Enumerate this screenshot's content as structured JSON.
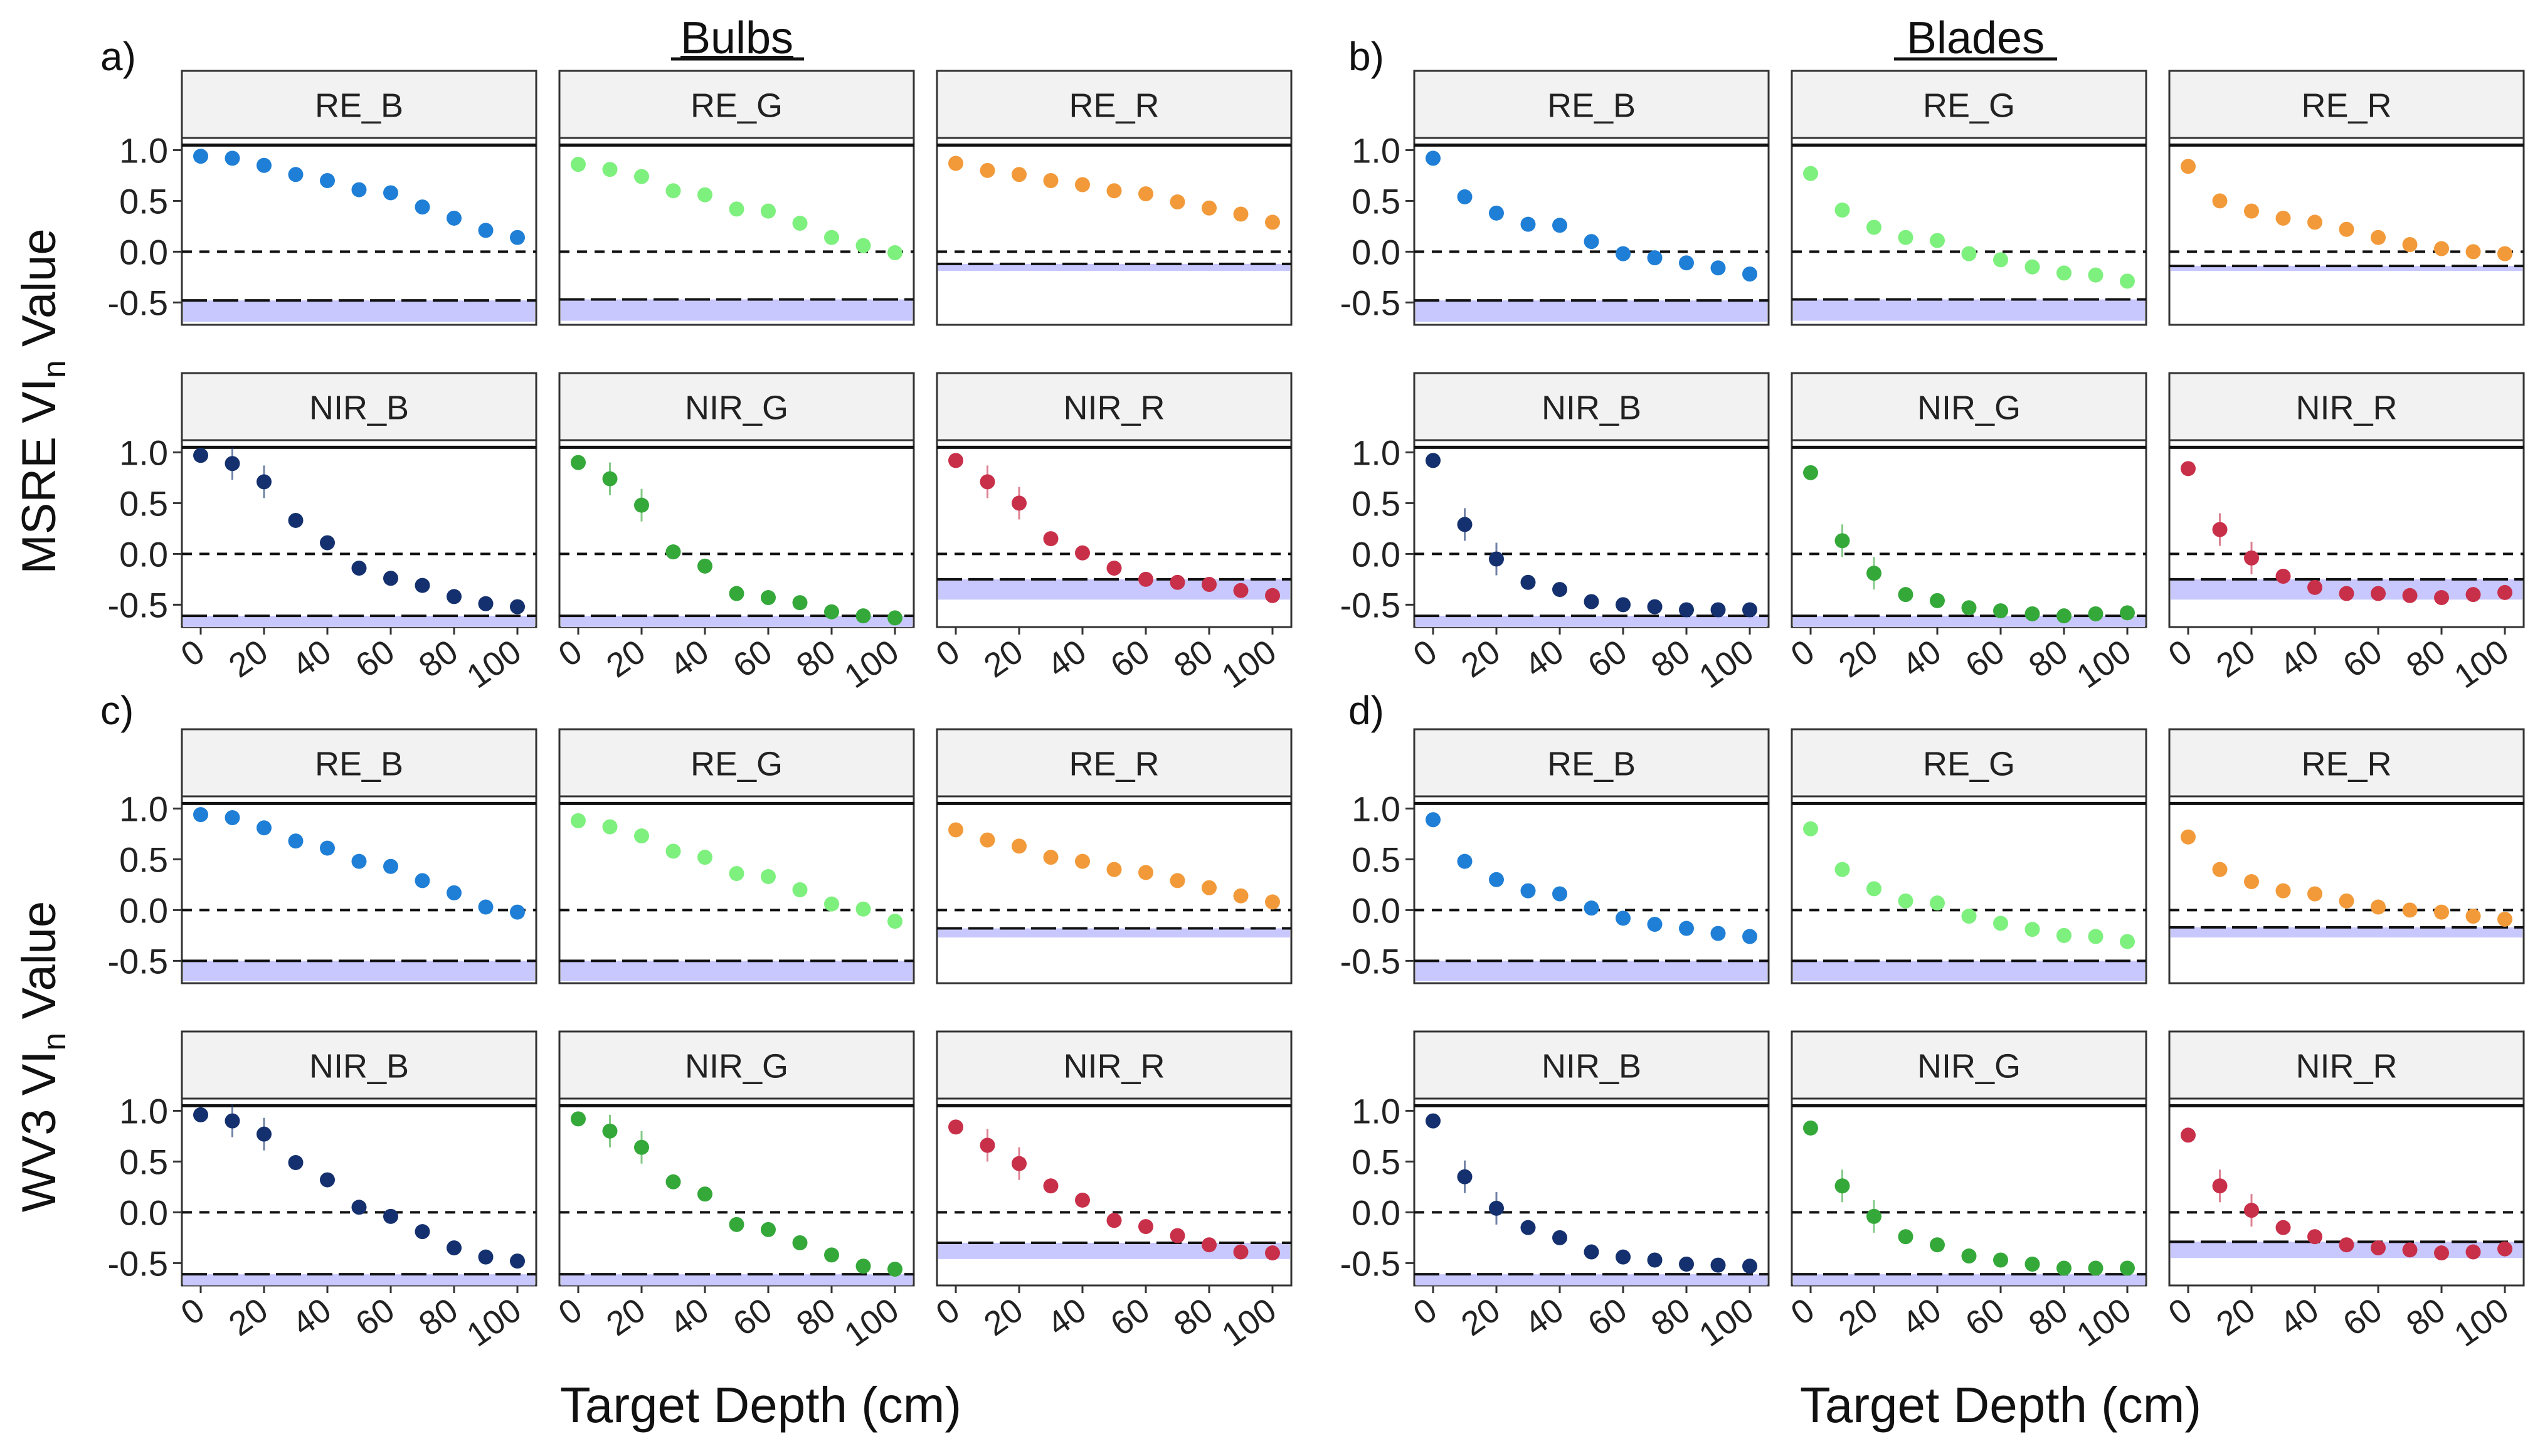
{
  "titles": {
    "bulbs": "Bulbs",
    "blades": "Blades",
    "xlabel": "Target Depth (cm)",
    "ylabel_msre_prefix": "MSRE VI",
    "ylabel_wv3_prefix": "WV3 VI",
    "ylabel_sub": "n",
    "ylabel_suffix": " Value"
  },
  "panel_letters": [
    "a)",
    "b)",
    "c)",
    "d)"
  ],
  "strip_labels": [
    "RE_B",
    "RE_G",
    "RE_R",
    "NIR_B",
    "NIR_G",
    "NIR_R"
  ],
  "colors": {
    "RE_B": "#1f7fd6",
    "RE_G": "#7ef07e",
    "RE_R": "#f29a3a",
    "NIR_B": "#14306e",
    "NIR_G": "#35a83a",
    "NIR_R": "#c8304a",
    "band": "#c8c8ff",
    "strip": "#f2f2f2"
  },
  "chart_data": {
    "type": "scatter",
    "x": [
      0,
      10,
      20,
      30,
      40,
      50,
      60,
      70,
      80,
      90,
      100
    ],
    "x_ticks": [
      "0",
      "20",
      "40",
      "60",
      "80",
      "100"
    ],
    "y_ticks": [
      "1.0",
      "0.5",
      "0.0",
      "-0.5"
    ],
    "ylim": [
      -0.72,
      1.12
    ],
    "xlabel": "Target Depth (cm)",
    "reference_lines": {
      "upper": 1.05,
      "zero": 0.0
    },
    "groups": [
      {
        "id": "a",
        "title": "Bulbs",
        "ylabel": "MSRE VIn Value",
        "panels": [
          {
            "label": "RE_B",
            "y": [
              0.94,
              0.92,
              0.85,
              0.76,
              0.7,
              0.61,
              0.58,
              0.44,
              0.33,
              0.21,
              0.14
            ],
            "threshold": -0.48,
            "band": [
              -0.69,
              -0.48
            ]
          },
          {
            "label": "RE_G",
            "y": [
              0.86,
              0.81,
              0.74,
              0.6,
              0.56,
              0.42,
              0.4,
              0.28,
              0.14,
              0.06,
              -0.01
            ],
            "threshold": -0.47,
            "band": [
              -0.68,
              -0.47
            ]
          },
          {
            "label": "RE_R",
            "y": [
              0.87,
              0.8,
              0.76,
              0.7,
              0.66,
              0.6,
              0.57,
              0.49,
              0.43,
              0.37,
              0.29
            ],
            "threshold": -0.12,
            "band": [
              -0.19,
              -0.12
            ]
          },
          {
            "label": "NIR_B",
            "y": [
              0.97,
              0.89,
              0.71,
              0.33,
              0.11,
              -0.14,
              -0.24,
              -0.31,
              -0.42,
              -0.49,
              -0.52
            ],
            "threshold": -0.61,
            "band": [
              -0.72,
              -0.61
            ]
          },
          {
            "label": "NIR_G",
            "y": [
              0.9,
              0.74,
              0.48,
              0.02,
              -0.12,
              -0.39,
              -0.43,
              -0.48,
              -0.57,
              -0.61,
              -0.63
            ],
            "threshold": -0.61,
            "band": [
              -0.72,
              -0.61
            ]
          },
          {
            "label": "NIR_R",
            "y": [
              0.92,
              0.71,
              0.5,
              0.15,
              0.01,
              -0.14,
              -0.25,
              -0.28,
              -0.3,
              -0.36,
              -0.41
            ],
            "threshold": -0.25,
            "band": [
              -0.45,
              -0.25
            ]
          }
        ]
      },
      {
        "id": "b",
        "title": "Blades",
        "ylabel": "MSRE VIn Value",
        "panels": [
          {
            "label": "RE_B",
            "y": [
              0.92,
              0.54,
              0.38,
              0.27,
              0.26,
              0.1,
              -0.02,
              -0.06,
              -0.11,
              -0.16,
              -0.22
            ],
            "threshold": -0.48,
            "band": [
              -0.69,
              -0.48
            ]
          },
          {
            "label": "RE_G",
            "y": [
              0.77,
              0.41,
              0.24,
              0.14,
              0.11,
              -0.02,
              -0.08,
              -0.15,
              -0.21,
              -0.23,
              -0.29
            ],
            "threshold": -0.47,
            "band": [
              -0.68,
              -0.47
            ]
          },
          {
            "label": "RE_R",
            "y": [
              0.84,
              0.5,
              0.4,
              0.33,
              0.29,
              0.22,
              0.14,
              0.07,
              0.03,
              0.0,
              -0.02
            ],
            "threshold": -0.14,
            "band": [
              -0.19,
              -0.14
            ]
          },
          {
            "label": "NIR_B",
            "y": [
              0.92,
              0.29,
              -0.05,
              -0.28,
              -0.35,
              -0.47,
              -0.5,
              -0.52,
              -0.55,
              -0.55,
              -0.55
            ],
            "threshold": -0.61,
            "band": [
              -0.72,
              -0.61
            ]
          },
          {
            "label": "NIR_G",
            "y": [
              0.8,
              0.13,
              -0.19,
              -0.4,
              -0.46,
              -0.53,
              -0.56,
              -0.59,
              -0.61,
              -0.59,
              -0.58
            ],
            "threshold": -0.61,
            "band": [
              -0.72,
              -0.61
            ]
          },
          {
            "label": "NIR_R",
            "y": [
              0.84,
              0.24,
              -0.04,
              -0.22,
              -0.33,
              -0.39,
              -0.39,
              -0.41,
              -0.43,
              -0.4,
              -0.38
            ],
            "threshold": -0.25,
            "band": [
              -0.45,
              -0.25
            ]
          }
        ]
      },
      {
        "id": "c",
        "title": "Bulbs",
        "ylabel": "WV3 VIn Value",
        "panels": [
          {
            "label": "RE_B",
            "y": [
              0.94,
              0.91,
              0.81,
              0.68,
              0.61,
              0.48,
              0.43,
              0.29,
              0.17,
              0.03,
              -0.02
            ],
            "threshold": -0.5,
            "band": [
              -0.7,
              -0.5
            ]
          },
          {
            "label": "RE_G",
            "y": [
              0.88,
              0.82,
              0.73,
              0.58,
              0.52,
              0.36,
              0.33,
              0.2,
              0.06,
              0.01,
              -0.11
            ],
            "threshold": -0.5,
            "band": [
              -0.7,
              -0.5
            ]
          },
          {
            "label": "RE_R",
            "y": [
              0.79,
              0.69,
              0.63,
              0.52,
              0.48,
              0.4,
              0.37,
              0.29,
              0.22,
              0.14,
              0.08
            ],
            "threshold": -0.18,
            "band": [
              -0.27,
              -0.18
            ]
          },
          {
            "label": "NIR_B",
            "y": [
              0.96,
              0.9,
              0.77,
              0.49,
              0.32,
              0.05,
              -0.04,
              -0.19,
              -0.35,
              -0.44,
              -0.48
            ],
            "threshold": -0.61,
            "band": [
              -0.72,
              -0.61
            ]
          },
          {
            "label": "NIR_G",
            "y": [
              0.92,
              0.8,
              0.64,
              0.3,
              0.18,
              -0.12,
              -0.17,
              -0.3,
              -0.42,
              -0.53,
              -0.56
            ],
            "threshold": -0.61,
            "band": [
              -0.72,
              -0.61
            ]
          },
          {
            "label": "NIR_R",
            "y": [
              0.84,
              0.66,
              0.48,
              0.26,
              0.12,
              -0.08,
              -0.14,
              -0.23,
              -0.32,
              -0.39,
              -0.4
            ],
            "threshold": -0.3,
            "band": [
              -0.46,
              -0.3
            ]
          }
        ]
      },
      {
        "id": "d",
        "title": "Blades",
        "ylabel": "WV3 VIn Value",
        "panels": [
          {
            "label": "RE_B",
            "y": [
              0.89,
              0.48,
              0.3,
              0.19,
              0.16,
              0.02,
              -0.08,
              -0.14,
              -0.18,
              -0.23,
              -0.26
            ],
            "threshold": -0.5,
            "band": [
              -0.7,
              -0.5
            ]
          },
          {
            "label": "RE_G",
            "y": [
              0.8,
              0.4,
              0.21,
              0.09,
              0.07,
              -0.06,
              -0.13,
              -0.19,
              -0.25,
              -0.26,
              -0.31
            ],
            "threshold": -0.5,
            "band": [
              -0.7,
              -0.5
            ]
          },
          {
            "label": "RE_R",
            "y": [
              0.72,
              0.4,
              0.28,
              0.19,
              0.16,
              0.09,
              0.03,
              0.0,
              -0.02,
              -0.06,
              -0.09
            ],
            "threshold": -0.17,
            "band": [
              -0.27,
              -0.17
            ]
          },
          {
            "label": "NIR_B",
            "y": [
              0.9,
              0.35,
              0.04,
              -0.15,
              -0.25,
              -0.39,
              -0.44,
              -0.47,
              -0.51,
              -0.52,
              -0.53
            ],
            "threshold": -0.61,
            "band": [
              -0.72,
              -0.61
            ]
          },
          {
            "label": "NIR_G",
            "y": [
              0.83,
              0.26,
              -0.04,
              -0.24,
              -0.32,
              -0.43,
              -0.47,
              -0.51,
              -0.55,
              -0.55,
              -0.55
            ],
            "threshold": -0.61,
            "band": [
              -0.72,
              -0.61
            ]
          },
          {
            "label": "NIR_R",
            "y": [
              0.76,
              0.26,
              0.02,
              -0.15,
              -0.24,
              -0.32,
              -0.35,
              -0.37,
              -0.4,
              -0.39,
              -0.36
            ],
            "threshold": -0.29,
            "band": [
              -0.45,
              -0.29
            ]
          }
        ]
      }
    ]
  }
}
